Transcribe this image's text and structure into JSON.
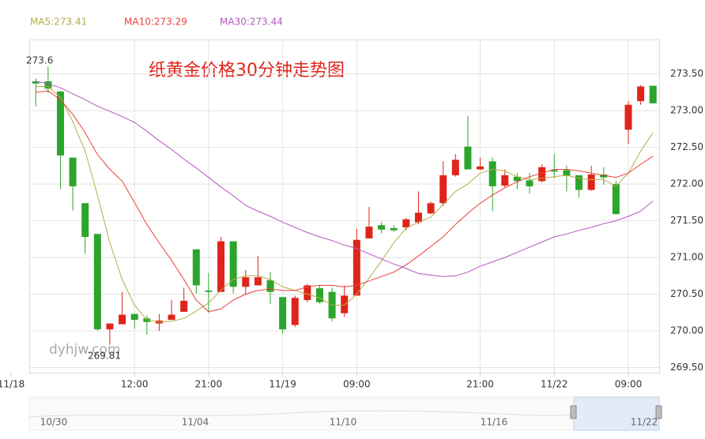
{
  "chart_data": {
    "type": "candlestick",
    "title": "纸黄金价格30分钟走势图",
    "watermark": "dyhjw.com",
    "annotations": [
      "273.6",
      "269.81"
    ],
    "up_color": "#e0241a",
    "down_color": "#2ca52c",
    "categories": [
      "11/18",
      null,
      null,
      null,
      null,
      null,
      null,
      null,
      null,
      null,
      "12:00",
      null,
      null,
      null,
      null,
      null,
      "21:00",
      null,
      null,
      null,
      null,
      null,
      "11/19",
      null,
      null,
      null,
      null,
      null,
      "09:00",
      null,
      null,
      null,
      null,
      null,
      null,
      null,
      null,
      null,
      "21:00",
      null,
      null,
      null,
      null,
      null,
      "11/22",
      null,
      null,
      null,
      null,
      null,
      "09:00",
      null,
      null
    ],
    "open": [
      null,
      null,
      273.4,
      273.4,
      273.26,
      272.36,
      271.74,
      271.32,
      270.02,
      270.09,
      270.23,
      270.17,
      270.1,
      270.15,
      270.26,
      271.11,
      270.55,
      270.53,
      271.22,
      270.6,
      270.62,
      270.69,
      270.46,
      270.08,
      270.42,
      270.58,
      270.53,
      270.24,
      270.48,
      271.26,
      271.44,
      271.4,
      271.41,
      271.48,
      271.6,
      271.74,
      272.12,
      272.51,
      272.2,
      272.31,
      271.98,
      272.1,
      272.05,
      272.04,
      272.19,
      272.19,
      272.12,
      271.92,
      272.13,
      272.0,
      272.74,
      273.13,
      273.34
    ],
    "high": [
      null,
      null,
      273.44,
      273.6,
      273.27,
      272.36,
      271.74,
      271.32,
      270.1,
      270.53,
      270.23,
      270.21,
      270.23,
      270.42,
      270.59,
      271.11,
      270.79,
      271.28,
      271.22,
      270.83,
      271.02,
      270.8,
      270.46,
      270.48,
      270.64,
      270.62,
      270.59,
      270.62,
      271.39,
      271.69,
      271.48,
      271.44,
      271.54,
      271.9,
      271.76,
      272.31,
      272.41,
      272.93,
      272.36,
      272.36,
      272.2,
      272.15,
      272.15,
      272.27,
      272.41,
      272.25,
      272.12,
      272.25,
      272.23,
      272.04,
      273.13,
      273.35,
      273.34
    ],
    "low": [
      null,
      null,
      273.06,
      273.24,
      271.93,
      271.64,
      271.05,
      270.0,
      269.81,
      270.09,
      270.03,
      269.95,
      270.0,
      270.15,
      270.26,
      270.51,
      270.25,
      270.53,
      270.51,
      270.49,
      270.62,
      270.37,
      269.96,
      270.05,
      270.39,
      270.37,
      270.13,
      270.19,
      270.48,
      271.26,
      271.33,
      271.35,
      271.37,
      271.45,
      271.59,
      271.7,
      272.1,
      272.2,
      272.19,
      271.63,
      271.95,
      271.93,
      271.87,
      272.02,
      272.08,
      271.9,
      271.82,
      271.91,
      271.99,
      271.59,
      272.55,
      273.08,
      273.1
    ],
    "close": [
      null,
      null,
      273.37,
      273.3,
      272.39,
      271.97,
      271.28,
      270.02,
      270.1,
      270.22,
      270.15,
      270.12,
      270.14,
      270.22,
      270.41,
      270.62,
      270.53,
      271.22,
      270.6,
      270.73,
      270.73,
      270.53,
      270.02,
      270.45,
      270.62,
      270.39,
      270.17,
      270.48,
      271.24,
      271.42,
      271.38,
      271.37,
      271.52,
      271.61,
      271.74,
      272.12,
      272.33,
      272.2,
      272.24,
      271.97,
      272.12,
      272.04,
      271.97,
      272.23,
      272.17,
      272.11,
      271.92,
      272.13,
      272.09,
      271.59,
      273.08,
      273.33,
      273.1
    ],
    "series": [
      {
        "name": "MA5:273.41",
        "color": "#b5ad48",
        "values": [
          null,
          null,
          273.33,
          273.33,
          273.18,
          272.85,
          272.45,
          271.85,
          271.2,
          270.7,
          270.35,
          270.15,
          270.12,
          270.13,
          270.17,
          270.27,
          270.38,
          270.55,
          270.7,
          270.75,
          270.75,
          270.7,
          270.6,
          270.55,
          270.5,
          270.45,
          270.35,
          270.35,
          270.5,
          270.72,
          270.95,
          271.2,
          271.4,
          271.48,
          271.55,
          271.72,
          271.9,
          272.0,
          272.15,
          272.2,
          272.18,
          272.1,
          272.06,
          272.08,
          272.1,
          272.12,
          272.08,
          272.06,
          272.06,
          271.97,
          272.15,
          272.45,
          272.7
        ]
      },
      {
        "name": "MA10:273.29",
        "color": "#e8413a",
        "values": [
          null,
          null,
          273.25,
          273.27,
          273.15,
          272.95,
          272.7,
          272.4,
          272.2,
          272.04,
          271.75,
          271.45,
          271.2,
          270.96,
          270.7,
          270.42,
          270.26,
          270.3,
          270.42,
          270.5,
          270.55,
          270.57,
          270.55,
          270.55,
          270.6,
          270.62,
          270.62,
          270.6,
          270.62,
          270.68,
          270.74,
          270.8,
          270.9,
          271.02,
          271.15,
          271.28,
          271.45,
          271.6,
          271.74,
          271.85,
          271.95,
          272.03,
          272.1,
          272.15,
          272.2,
          272.2,
          272.18,
          272.15,
          272.12,
          272.09,
          272.15,
          272.27,
          272.38
        ]
      },
      {
        "name": "MA30:273.44",
        "color": "#b456c0",
        "values": [
          null,
          null,
          273.4,
          273.37,
          273.31,
          273.23,
          273.15,
          273.06,
          272.99,
          272.92,
          272.84,
          272.72,
          272.59,
          272.47,
          272.34,
          272.22,
          272.09,
          271.96,
          271.84,
          271.71,
          271.63,
          271.56,
          271.48,
          271.41,
          271.34,
          271.28,
          271.23,
          271.17,
          271.12,
          271.05,
          270.98,
          270.91,
          270.85,
          270.78,
          270.76,
          270.74,
          270.75,
          270.8,
          270.88,
          270.94,
          271.0,
          271.07,
          271.14,
          271.21,
          271.28,
          271.32,
          271.37,
          271.41,
          271.46,
          271.5,
          271.56,
          271.63,
          271.77
        ]
      }
    ],
    "ylim": [
      269.43,
      273.97
    ],
    "yticks": [
      {
        "value": 269.5,
        "label": "269.50"
      },
      {
        "value": 270,
        "label": "270.00"
      },
      {
        "value": 270.5,
        "label": "270.50"
      },
      {
        "value": 271,
        "label": "271.00"
      },
      {
        "value": 271.5,
        "label": "271.50"
      },
      {
        "value": 272,
        "label": "272.00"
      },
      {
        "value": 272.5,
        "label": "272.50"
      },
      {
        "value": 273,
        "label": "273.00"
      },
      {
        "value": 273.5,
        "label": "273.50"
      }
    ],
    "grid": true,
    "navigator_labels": [
      "10/30",
      "11/04",
      "11/10",
      "11/16",
      "11/22"
    ]
  }
}
